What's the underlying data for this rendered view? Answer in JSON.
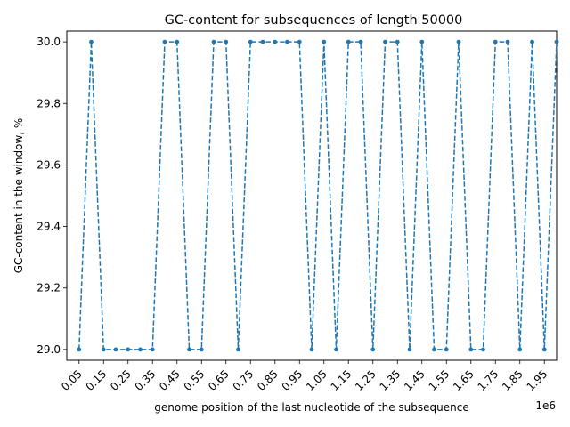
{
  "chart_data": {
    "type": "line",
    "title": "GC-content for subsequences of length 50000",
    "xlabel": "genome position of the last nucleotide of the subsequence",
    "ylabel": "GC-content in the window, %",
    "x_offset_label": "1e6",
    "xlim": [
      0.0,
      2.0
    ],
    "ylim": [
      28.965,
      30.035
    ],
    "x_tick_values": [
      0.05,
      0.15,
      0.25,
      0.35,
      0.45,
      0.55,
      0.65,
      0.75,
      0.85,
      0.95,
      1.05,
      1.15,
      1.25,
      1.35,
      1.45,
      1.55,
      1.65,
      1.75,
      1.85,
      1.95
    ],
    "x_tick_labels": [
      "0.05",
      "0.15",
      "0.25",
      "0.35",
      "0.45",
      "0.55",
      "0.65",
      "0.75",
      "0.85",
      "0.95",
      "1.05",
      "1.15",
      "1.25",
      "1.35",
      "1.45",
      "1.55",
      "1.65",
      "1.75",
      "1.85",
      "1.95"
    ],
    "y_tick_values": [
      29.0,
      29.2,
      29.4,
      29.6,
      29.8,
      30.0
    ],
    "y_tick_labels": [
      "29.0",
      "29.2",
      "29.4",
      "29.6",
      "29.8",
      "30.0"
    ],
    "grid": false,
    "line_style": "dashed",
    "marker": "dot",
    "series": [
      {
        "color": "#1f77b4",
        "x": [
          0.05,
          0.1,
          0.15,
          0.2,
          0.25,
          0.3,
          0.35,
          0.4,
          0.45,
          0.5,
          0.55,
          0.6,
          0.65,
          0.7,
          0.75,
          0.8,
          0.85,
          0.9,
          0.95,
          1.0,
          1.05,
          1.1,
          1.15,
          1.2,
          1.25,
          1.3,
          1.35,
          1.4,
          1.45,
          1.5,
          1.55,
          1.6,
          1.65,
          1.7,
          1.75,
          1.8,
          1.85,
          1.9,
          1.95,
          2.0
        ],
        "values": [
          29.0,
          30.0,
          29.0,
          29.0,
          29.0,
          29.0,
          29.0,
          30.0,
          30.0,
          29.0,
          29.0,
          30.0,
          30.0,
          29.0,
          30.0,
          30.0,
          30.0,
          30.0,
          30.0,
          29.0,
          30.0,
          29.0,
          30.0,
          30.0,
          29.0,
          30.0,
          30.0,
          29.0,
          30.0,
          29.0,
          29.0,
          30.0,
          29.0,
          29.0,
          30.0,
          30.0,
          29.0,
          30.0,
          29.0,
          30.0
        ]
      }
    ]
  }
}
